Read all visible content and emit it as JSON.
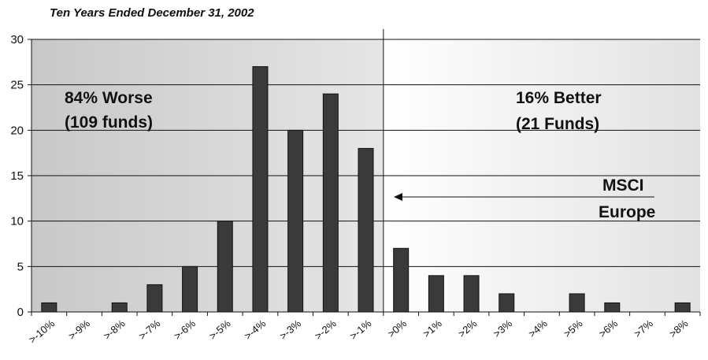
{
  "chart_data": {
    "type": "bar",
    "subtitle": "Ten Years Ended December 31, 2002",
    "categories": [
      ">-10%",
      ">-9%",
      ">-8%",
      ">-7%",
      ">-6%",
      ">-5%",
      ">-4%",
      ">-3%",
      ">-2%",
      ">-1%",
      ">0%",
      ">1%",
      ">2%",
      ">3%",
      ">4%",
      ">5%",
      ">6%",
      ">7%",
      ">8%"
    ],
    "values": [
      1,
      0,
      1,
      3,
      5,
      10,
      27,
      20,
      24,
      18,
      7,
      4,
      4,
      2,
      0,
      2,
      1,
      0,
      1
    ],
    "ylim": [
      0,
      30
    ],
    "yticks": [
      0,
      5,
      10,
      15,
      20,
      25,
      30
    ],
    "grid": true,
    "annotations": {
      "worse_line1": "84% Worse",
      "worse_line2": "(109 funds)",
      "better_line1": "16% Better",
      "better_line2": "(21 Funds)",
      "benchmark_line1": "MSCI",
      "benchmark_line2": "Europe"
    },
    "colors": {
      "bar": "#3a3a3a",
      "left_shade_dark": "#c8c8c8",
      "left_shade_light": "#e6e6e6",
      "right_shade_light": "#ffffff",
      "right_shade_dark": "#e2e2e2"
    }
  }
}
